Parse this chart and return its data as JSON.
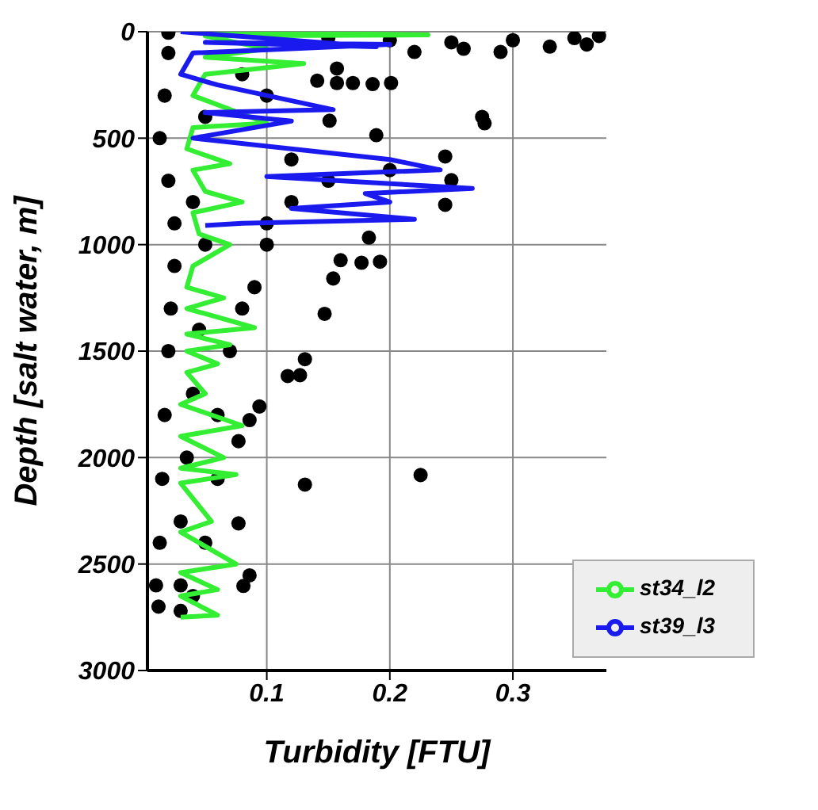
{
  "chart_data": {
    "type": "scatter",
    "xlabel": "Turbidity [FTU]",
    "ylabel": "Depth [salt water, m]",
    "xlim": [
      0.003,
      0.376
    ],
    "xticks": [
      0.1,
      0.2,
      0.3
    ],
    "ylim": [
      3000,
      0
    ],
    "yticks": [
      0,
      500,
      1000,
      1500,
      2000,
      2500,
      3000
    ],
    "grid": true,
    "legend": "bottom right",
    "series": [
      {
        "color": "#000000",
        "marker": "circle",
        "x": [
          0.02,
          0.15,
          0.2,
          0.25,
          0.3,
          0.35,
          0.37,
          0.22,
          0.26,
          0.29,
          0.33,
          0.36,
          0.275,
          0.277,
          0.141,
          0.157,
          0.17,
          0.186,
          0.201,
          0.157,
          0.151,
          0.189,
          0.245,
          0.25,
          0.245,
          0.183,
          0.16,
          0.177,
          0.192,
          0.154,
          0.147,
          0.131,
          0.117,
          0.127,
          0.094,
          0.086,
          0.077,
          0.131,
          0.225,
          0.077,
          0.086,
          0.081,
          0.02,
          0.017,
          0.013,
          0.02,
          0.025,
          0.025,
          0.022,
          0.02,
          0.017,
          0.015,
          0.013,
          0.01,
          0.012,
          0.03,
          0.08,
          0.1,
          0.12,
          0.15,
          0.2,
          0.12,
          0.1,
          0.1,
          0.09,
          0.08,
          0.07,
          0.06,
          0.06,
          0.05,
          0.04,
          0.05,
          0.04,
          0.05,
          0.045,
          0.04,
          0.035,
          0.03,
          0.03
        ],
        "values": [
          5,
          30,
          40,
          50,
          40,
          30,
          20,
          95,
          80,
          95,
          70,
          60,
          400,
          430,
          230,
          241,
          241,
          246,
          241,
          173,
          418,
          486,
          586,
          697,
          813,
          967,
          1073,
          1085,
          1080,
          1159,
          1325,
          1538,
          1617,
          1613,
          1760,
          1824,
          1923,
          2127,
          2082,
          2309,
          2553,
          2603,
          100,
          300,
          500,
          700,
          900,
          1100,
          1300,
          1500,
          1800,
          2100,
          2400,
          2600,
          2700,
          2720,
          200,
          300,
          600,
          700,
          650,
          800,
          900,
          1000,
          1200,
          1300,
          1500,
          1800,
          2100,
          2400,
          2650,
          400,
          800,
          1000,
          1400,
          1700,
          2000,
          2300,
          2600
        ]
      },
      {
        "type": "line",
        "name": "st34_l2",
        "color": "#33ee33",
        "marker": "none",
        "x": [
          0.04,
          0.231,
          0.05,
          0.1,
          0.05,
          0.13,
          0.05,
          0.04,
          0.1,
          0.04,
          0.035,
          0.07,
          0.04,
          0.05,
          0.08,
          0.04,
          0.045,
          0.07,
          0.04,
          0.035,
          0.065,
          0.035,
          0.09,
          0.035,
          0.07,
          0.035,
          0.06,
          0.035,
          0.05,
          0.03,
          0.08,
          0.03,
          0.065,
          0.03,
          0.075,
          0.03,
          0.055,
          0.03,
          0.075,
          0.03,
          0.06,
          0.03,
          0.06,
          0.03
        ],
        "values": [
          0,
          15,
          20,
          80,
          120,
          150,
          200,
          300,
          430,
          450,
          550,
          620,
          650,
          750,
          800,
          850,
          950,
          1000,
          1100,
          1200,
          1250,
          1300,
          1390,
          1420,
          1470,
          1500,
          1560,
          1600,
          1700,
          1750,
          1850,
          1900,
          2000,
          2050,
          2080,
          2120,
          2300,
          2350,
          2500,
          2540,
          2620,
          2650,
          2740,
          2750
        ]
      },
      {
        "type": "line",
        "name": "st39_l3",
        "color": "#1a1aee",
        "marker": "none",
        "x": [
          0.03,
          0.189,
          0.05,
          0.2,
          0.04,
          0.03,
          0.06,
          0.154,
          0.05,
          0.12,
          0.04,
          0.2,
          0.241,
          0.1,
          0.267,
          0.18,
          0.2,
          0.12,
          0.22,
          0.08,
          0.05
        ],
        "values": [
          0,
          71,
          50,
          60,
          100,
          200,
          250,
          366,
          380,
          420,
          500,
          600,
          649,
          680,
          736,
          760,
          800,
          830,
          881,
          900,
          910
        ]
      }
    ]
  }
}
